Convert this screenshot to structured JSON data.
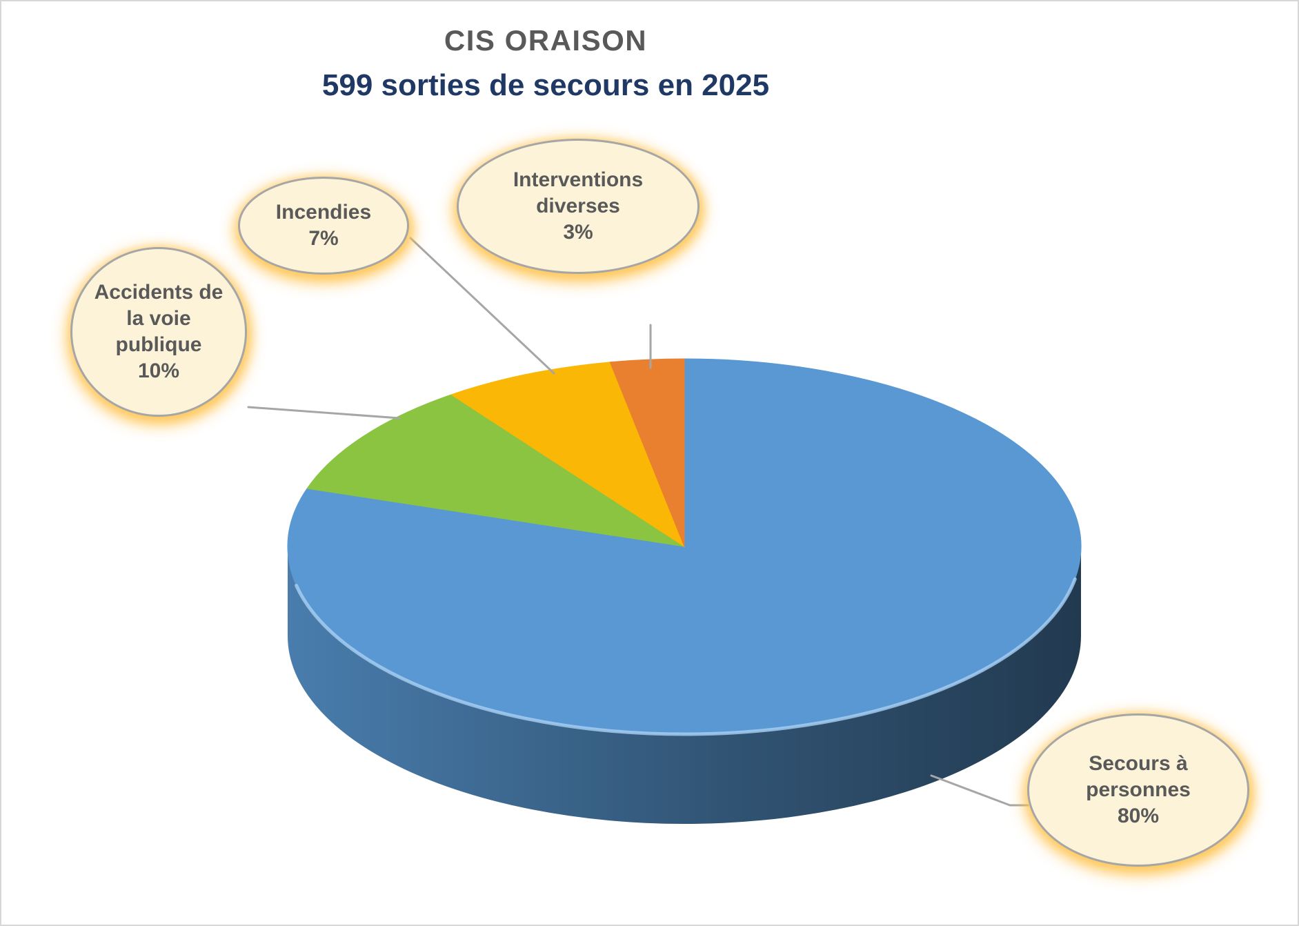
{
  "header": {
    "title": "CIS ORAISON",
    "subtitle": "599 sorties de secours en 2025"
  },
  "chart_data": {
    "type": "pie",
    "style": "3d-pie",
    "title": "CIS ORAISON",
    "subtitle": "599 sorties de secours en 2025",
    "total_sorties": 599,
    "year": "2025",
    "start_angle_deg": 0,
    "direction": "clockwise",
    "legend": "callout-bubbles",
    "slices": [
      {
        "label": "Secours à personnes",
        "pct": 80,
        "pct_label": "80%",
        "color": "#5998d3"
      },
      {
        "label": "Accidents de la voie publique",
        "pct": 10,
        "pct_label": "10%",
        "color": "#8ac441"
      },
      {
        "label": "Incendies",
        "pct": 7,
        "pct_label": "7%",
        "color": "#fbb705"
      },
      {
        "label": "Interventions diverses",
        "pct": 3,
        "pct_label": "3%",
        "color": "#e8802f"
      }
    ],
    "colors": {
      "title_gray": "#595959",
      "subtitle_navy": "#1f3864",
      "bubble_fill": "#fcf3d8",
      "bubble_border": "#a6a6a6",
      "bubble_glow": "#ffc24b",
      "bubble_text": "#595959",
      "leader_line": "#a6a6a6",
      "rim_shadow_dark": "#233b51"
    }
  }
}
